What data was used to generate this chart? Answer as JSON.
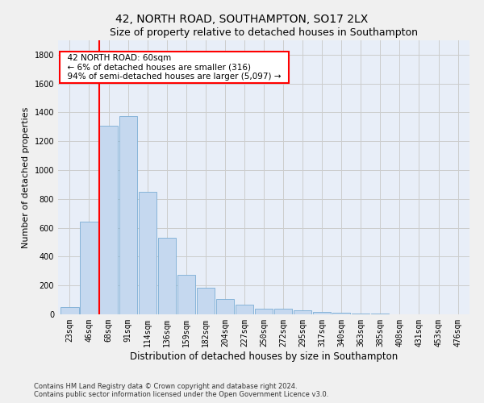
{
  "title": "42, NORTH ROAD, SOUTHAMPTON, SO17 2LX",
  "subtitle": "Size of property relative to detached houses in Southampton",
  "xlabel": "Distribution of detached houses by size in Southampton",
  "ylabel": "Number of detached properties",
  "footnote1": "Contains HM Land Registry data © Crown copyright and database right 2024.",
  "footnote2": "Contains public sector information licensed under the Open Government Licence v3.0.",
  "categories": [
    "23sqm",
    "46sqm",
    "68sqm",
    "91sqm",
    "114sqm",
    "136sqm",
    "159sqm",
    "182sqm",
    "204sqm",
    "227sqm",
    "250sqm",
    "272sqm",
    "295sqm",
    "317sqm",
    "340sqm",
    "363sqm",
    "385sqm",
    "408sqm",
    "431sqm",
    "453sqm",
    "476sqm"
  ],
  "values": [
    50,
    640,
    1310,
    1375,
    850,
    530,
    275,
    185,
    105,
    65,
    38,
    38,
    28,
    15,
    10,
    6,
    3,
    2,
    2,
    1,
    1
  ],
  "bar_color": "#c5d8ef",
  "bar_edge_color": "#7aadd4",
  "bar_linewidth": 0.6,
  "vline_x": 1.5,
  "vline_color": "red",
  "vline_linewidth": 1.5,
  "ylim": [
    0,
    1900
  ],
  "yticks": [
    0,
    200,
    400,
    600,
    800,
    1000,
    1200,
    1400,
    1600,
    1800
  ],
  "annotation_text": "  42 NORTH ROAD: 60sqm  \n  ← 6% of detached houses are smaller (316)  \n  94% of semi-detached houses are larger (5,097) →  ",
  "annotation_box_edgecolor": "red",
  "annotation_box_facecolor": "white",
  "grid_color": "#cccccc",
  "fig_facecolor": "#f0f0f0",
  "axes_facecolor": "#e8eef8",
  "title_fontsize": 10,
  "subtitle_fontsize": 9,
  "xlabel_fontsize": 8.5,
  "ylabel_fontsize": 8,
  "tick_fontsize": 7,
  "annotation_fontsize": 7.5,
  "footnote_fontsize": 6
}
